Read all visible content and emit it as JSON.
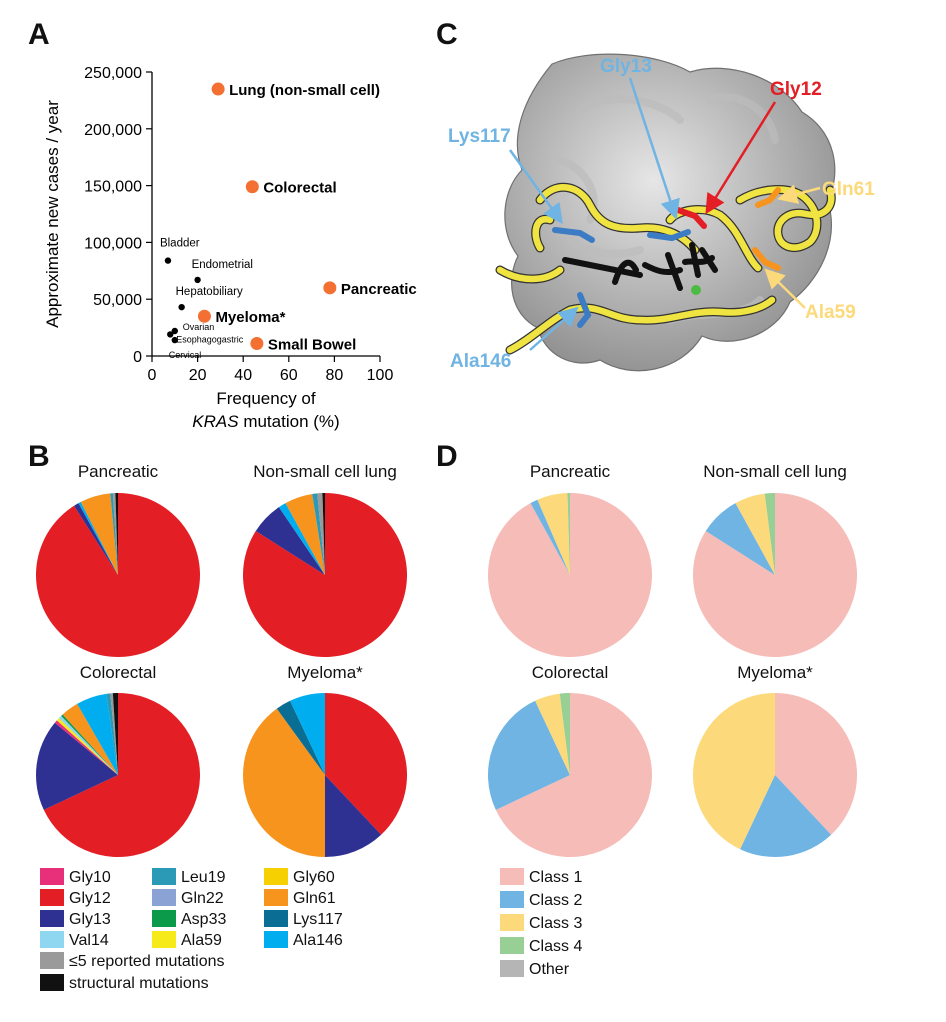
{
  "panels": {
    "a": "A",
    "b": "B",
    "c": "C",
    "d": "D"
  },
  "colors": {
    "Gly10": "#e8307a",
    "Gly12": "#e31e25",
    "Gly13": "#2e3192",
    "Val14": "#8fd6f0",
    "Leu19": "#2a9ab6",
    "Gln22": "#8aa2d4",
    "Asp33": "#0a9a4a",
    "Ala59": "#f7ea1a",
    "Gly60": "#f6d000",
    "Gln61": "#f7941d",
    "Lys117": "#0a6e94",
    "Ala146": "#00aeef",
    "few": "#9a9a9a",
    "structural": "#111111",
    "Class 1": "#f5bcb8",
    "Class 2": "#6fb4e2",
    "Class 3": "#fcd97a",
    "Class 4": "#98cf95",
    "Other": "#b5b5b5",
    "scatter_big": "#f37032",
    "scatter_small": "#000000"
  },
  "chart_data": [
    {
      "id": "A",
      "type": "scatter",
      "title": "",
      "xlabel_line1": "Frequency of",
      "xlabel_line2_italic": "KRAS",
      "xlabel_line2_rest": " mutation (%)",
      "ylabel": "Approximate new cases / year",
      "xlim": [
        0,
        100
      ],
      "ylim": [
        0,
        250000
      ],
      "xticks": [
        0,
        20,
        40,
        60,
        80,
        100
      ],
      "xtick_labels": [
        "0",
        "20",
        "40",
        "60",
        "80",
        "100"
      ],
      "yticks": [
        0,
        50000,
        100000,
        150000,
        200000,
        250000
      ],
      "ytick_labels": [
        "0",
        "50,000",
        "100,000",
        "150,000",
        "200,000",
        "250,000"
      ],
      "points": [
        {
          "label": "Lung (non-small cell)",
          "x": 29,
          "y": 235000,
          "size": "large"
        },
        {
          "label": "Colorectal",
          "x": 44,
          "y": 149000,
          "size": "large"
        },
        {
          "label": "Pancreatic",
          "x": 78,
          "y": 60000,
          "size": "large"
        },
        {
          "label": "Myeloma*",
          "x": 23,
          "y": 35000,
          "size": "large"
        },
        {
          "label": "Small Bowel",
          "x": 46,
          "y": 11000,
          "size": "large"
        },
        {
          "label": "Bladder",
          "x": 7,
          "y": 84000,
          "size": "small"
        },
        {
          "label": "Endometrial",
          "x": 20,
          "y": 67000,
          "size": "small"
        },
        {
          "label": "Hepatobiliary",
          "x": 13,
          "y": 43000,
          "size": "small"
        },
        {
          "label": "Ovarian",
          "x": 10,
          "y": 22000,
          "size": "small"
        },
        {
          "label": "Esophagogastric",
          "x": 8,
          "y": 19000,
          "size": "small"
        },
        {
          "label": "Cervical",
          "x": 10,
          "y": 14000,
          "size": "small"
        }
      ]
    },
    {
      "id": "B",
      "type": "pie",
      "pies": [
        {
          "title": "Pancreatic",
          "slices": [
            {
              "label": "Gly12",
              "value": 91
            },
            {
              "label": "Gly13",
              "value": 1
            },
            {
              "label": "Ala146",
              "value": 0.5
            },
            {
              "label": "Gln61",
              "value": 6
            },
            {
              "label": "Leu19",
              "value": 0.5
            },
            {
              "label": "≤5 reported mutations",
              "key": "few",
              "value": 0.5
            },
            {
              "label": "structural mutations",
              "key": "structural",
              "value": 0.5
            }
          ]
        },
        {
          "title": "Non-small cell lung",
          "slices": [
            {
              "label": "Gly12",
              "value": 84
            },
            {
              "label": "Gly13",
              "value": 6.5
            },
            {
              "label": "Ala146",
              "value": 1.5
            },
            {
              "label": "Gln61",
              "value": 5.5
            },
            {
              "label": "Leu19",
              "value": 1
            },
            {
              "label": "≤5 reported mutations",
              "key": "few",
              "value": 1
            },
            {
              "label": "structural mutations",
              "key": "structural",
              "value": 0.5
            }
          ]
        },
        {
          "title": "Colorectal",
          "slices": [
            {
              "label": "Gly12",
              "value": 68
            },
            {
              "label": "Gly13",
              "value": 18
            },
            {
              "label": "Gly10",
              "value": 0.6
            },
            {
              "label": "Ala59",
              "value": 0.6
            },
            {
              "label": "Val14",
              "value": 0.6
            },
            {
              "label": "Asp33",
              "value": 0.4
            },
            {
              "label": "Gln61",
              "value": 3.5
            },
            {
              "label": "Ala146",
              "value": 6
            },
            {
              "label": "Leu19",
              "value": 0.8
            },
            {
              "label": "≤5 reported mutations",
              "key": "few",
              "value": 0.5
            },
            {
              "label": "structural mutations",
              "key": "structural",
              "value": 1
            }
          ]
        },
        {
          "title": "Myeloma*",
          "slices": [
            {
              "label": "Gly12",
              "value": 38
            },
            {
              "label": "Gly13",
              "value": 12
            },
            {
              "label": "Gln61",
              "value": 40
            },
            {
              "label": "Lys117",
              "value": 3
            },
            {
              "label": "Ala146",
              "value": 7
            }
          ]
        }
      ]
    },
    {
      "id": "D",
      "type": "pie",
      "pies": [
        {
          "title": "Pancreatic",
          "slices": [
            {
              "label": "Class 1",
              "value": 92
            },
            {
              "label": "Class 2",
              "value": 1.5
            },
            {
              "label": "Class 3",
              "value": 6
            },
            {
              "label": "Class 4",
              "value": 0.5
            }
          ]
        },
        {
          "title": "Non-small cell lung",
          "slices": [
            {
              "label": "Class 1",
              "value": 84
            },
            {
              "label": "Class 2",
              "value": 8
            },
            {
              "label": "Class 3",
              "value": 6
            },
            {
              "label": "Class 4",
              "value": 2
            }
          ]
        },
        {
          "title": "Colorectal",
          "slices": [
            {
              "label": "Class 1",
              "value": 68
            },
            {
              "label": "Class 2",
              "value": 25
            },
            {
              "label": "Class 3",
              "value": 5
            },
            {
              "label": "Class 4",
              "value": 2
            }
          ]
        },
        {
          "title": "Myeloma*",
          "slices": [
            {
              "label": "Class 1",
              "value": 38
            },
            {
              "label": "Class 2",
              "value": 19
            },
            {
              "label": "Class 3",
              "value": 43
            }
          ]
        }
      ]
    }
  ],
  "legend_b": [
    {
      "key": "Gly10",
      "label": "Gly10"
    },
    {
      "key": "Leu19",
      "label": "Leu19"
    },
    {
      "key": "Gly60",
      "label": "Gly60"
    },
    {
      "key": "Gly12",
      "label": "Gly12"
    },
    {
      "key": "Gln22",
      "label": "Gln22"
    },
    {
      "key": "Gln61",
      "label": "Gln61"
    },
    {
      "key": "Gly13",
      "label": "Gly13"
    },
    {
      "key": "Asp33",
      "label": "Asp33"
    },
    {
      "key": "Lys117",
      "label": "Lys117"
    },
    {
      "key": "Val14",
      "label": "Val14"
    },
    {
      "key": "Ala59",
      "label": "Ala59"
    },
    {
      "key": "Ala146",
      "label": "Ala146"
    },
    {
      "key": "few",
      "label": "≤5 reported mutations"
    },
    {
      "key": "structural",
      "label": "structural mutations"
    }
  ],
  "legend_d": [
    {
      "key": "Class 1",
      "label": "Class 1"
    },
    {
      "key": "Class 2",
      "label": "Class 2"
    },
    {
      "key": "Class 3",
      "label": "Class 3"
    },
    {
      "key": "Class 4",
      "label": "Class 4"
    },
    {
      "key": "Other",
      "label": "Other"
    }
  ],
  "structure": {
    "labels": [
      {
        "text": "Gly13",
        "color": "#6fb4e2"
      },
      {
        "text": "Gly12",
        "color": "#e31e25"
      },
      {
        "text": "Lys117",
        "color": "#6fb4e2"
      },
      {
        "text": "Gln61",
        "color": "#fcd97a"
      },
      {
        "text": "Ala59",
        "color": "#fcd97a"
      },
      {
        "text": "Ala146",
        "color": "#6fb4e2"
      }
    ]
  }
}
